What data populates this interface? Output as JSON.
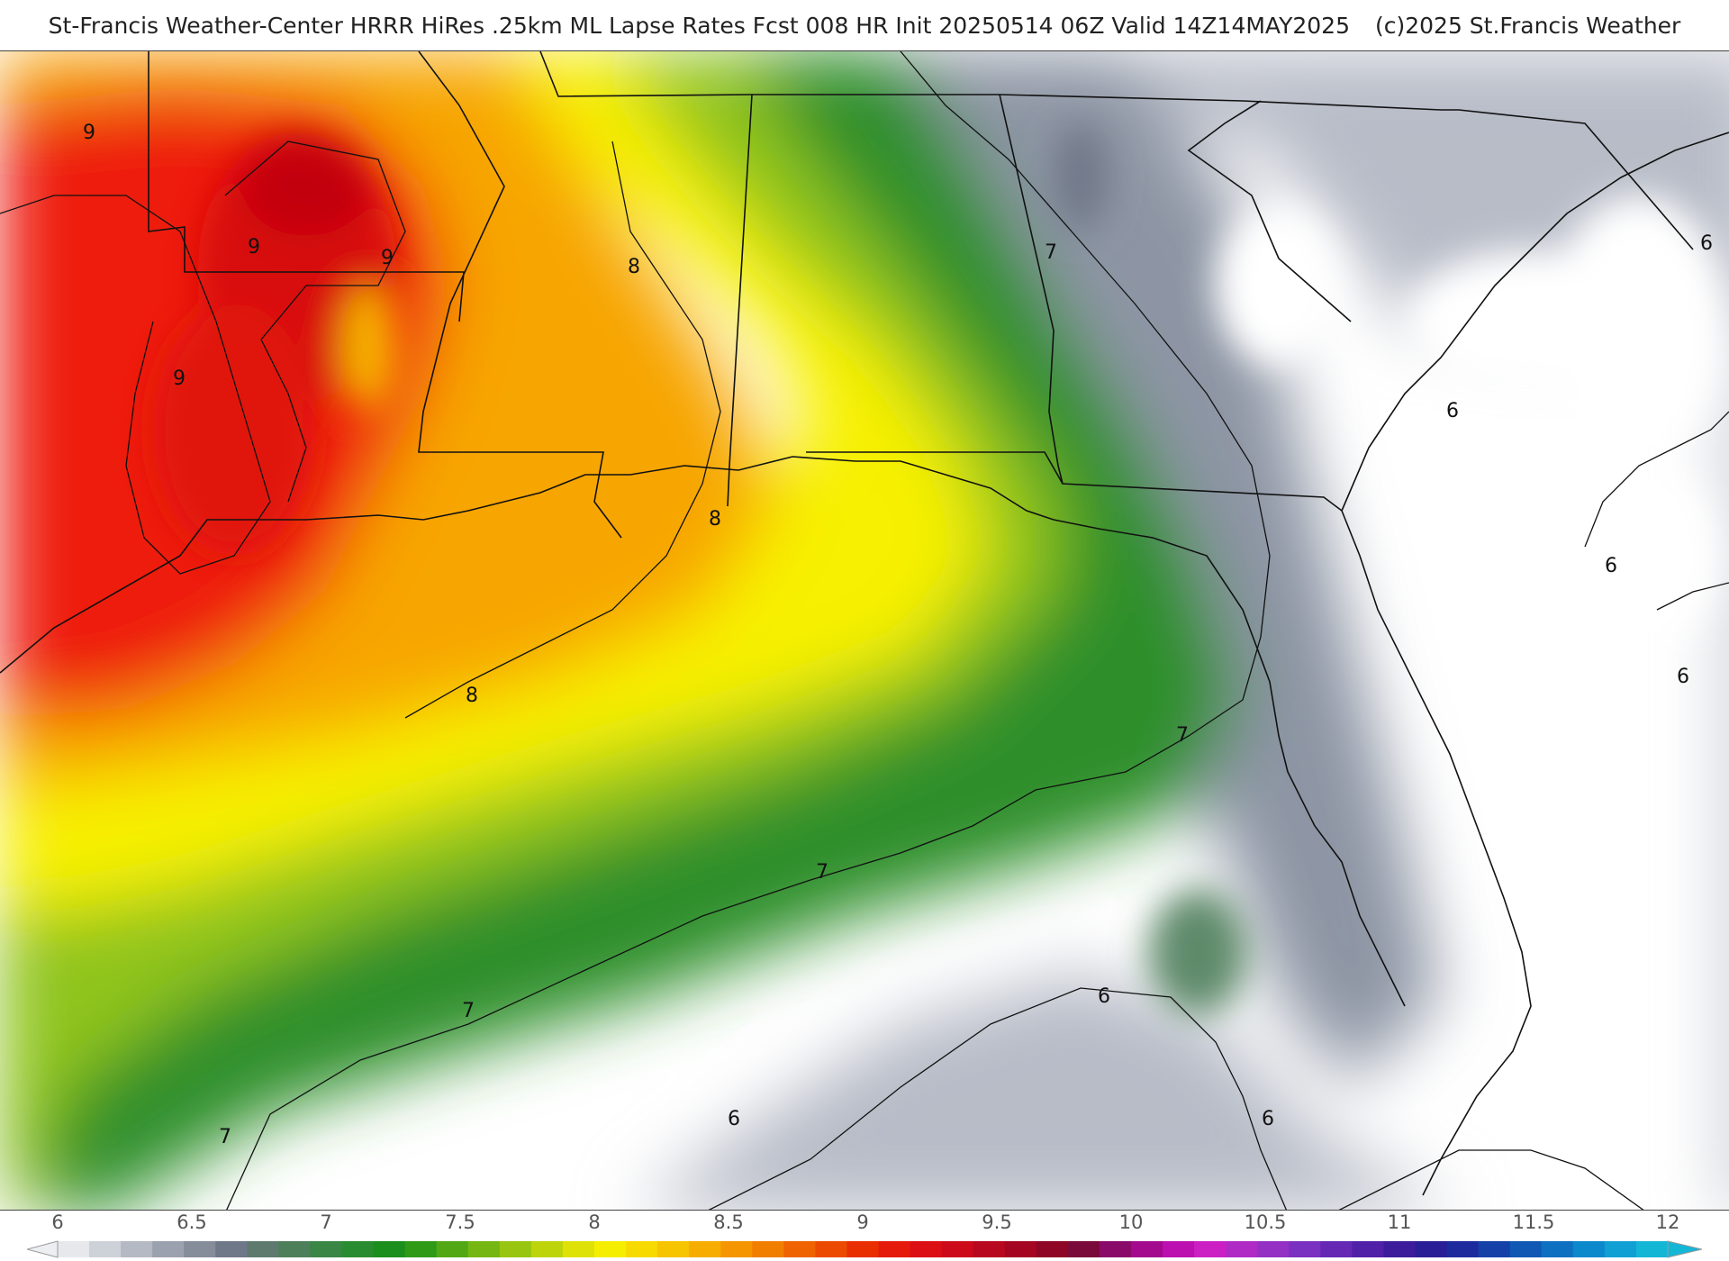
{
  "header": {
    "title": "St-Francis Weather-Center HRRR HiRes .25km ML Lapse Rates  Fcst 008 HR Init 20250514 06Z  Valid 14Z14MAY2025",
    "copyright": "(c)2025 St.Francis Weather"
  },
  "map": {
    "contour_labels": [
      "9",
      "9",
      "9",
      "9",
      "8",
      "8",
      "8",
      "7",
      "7",
      "7",
      "7",
      "7",
      "6",
      "6",
      "6",
      "6",
      "6",
      "6",
      "6"
    ],
    "colors": {
      "lapse_6": "#ffffff",
      "lapse_6_5": "#a9afbd",
      "lapse_7": "#2f8f2a",
      "lapse_7_5": "#8fc41a",
      "lapse_8": "#f7f000",
      "lapse_8_5": "#f7a500",
      "lapse_9": "#ee1e10",
      "lapse_10": "#9a0020",
      "lapse_11": "#5a1aa0",
      "lapse_12": "#10b0d0"
    }
  },
  "colorbar": {
    "ticks": [
      "6",
      "6.5",
      "7",
      "7.5",
      "8",
      "8.5",
      "9",
      "9.5",
      "10",
      "10.5",
      "11",
      "11.5",
      "12"
    ],
    "swatches": [
      "#e6e8ec",
      "#cdd1d8",
      "#b4b9c3",
      "#9ba1ae",
      "#858c9a",
      "#6f7888",
      "#5e7a6f",
      "#4d7f5a",
      "#3a8645",
      "#2a8c30",
      "#1a8f1e",
      "#2f9a16",
      "#52a814",
      "#75b612",
      "#98c50f",
      "#bdd40b",
      "#dfe206",
      "#f5ee00",
      "#f7da00",
      "#f7c400",
      "#f7ad00",
      "#f59600",
      "#f27e00",
      "#ef6400",
      "#ec4a00",
      "#e92e00",
      "#e51a0a",
      "#dc0f14",
      "#cc0a1a",
      "#b8081f",
      "#a40622",
      "#8e0526",
      "#7a0a3a",
      "#8a0a6a",
      "#a40a8e",
      "#bc10b0",
      "#cc20c4",
      "#b02ac6",
      "#9430c4",
      "#7a30c0",
      "#6428b4",
      "#5020a8",
      "#3c1c9a",
      "#2a1e96",
      "#1c2a9e",
      "#1440a8",
      "#1058b4",
      "#0e70c0",
      "#0c88cc",
      "#10a0d4",
      "#14b6d6"
    ]
  }
}
